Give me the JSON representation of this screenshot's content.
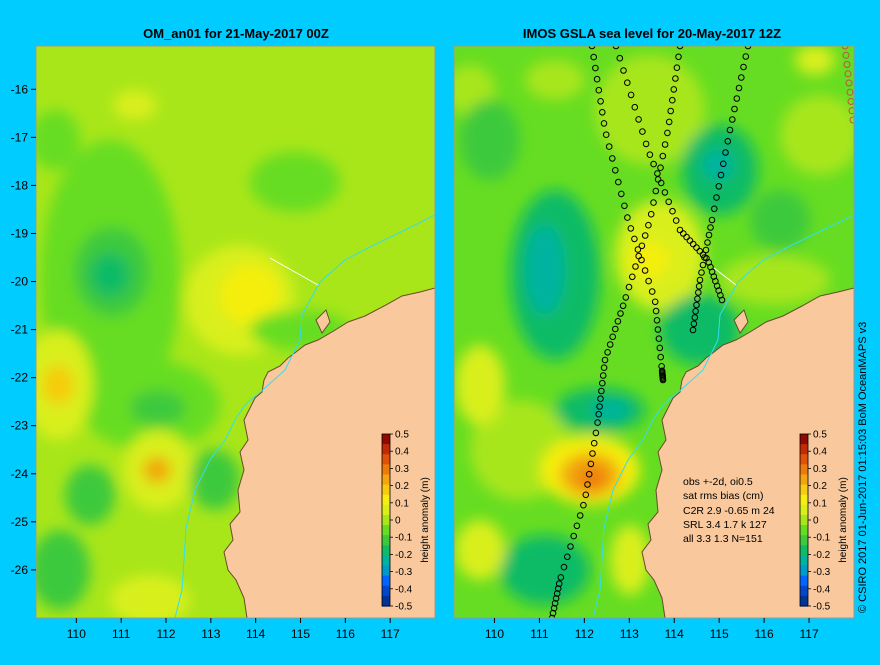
{
  "credit": "© CSIRO 2017   01-Jun-2017 01:15:03 BoM OceanMAPS v3",
  "colorbar_colors": [
    "#003399",
    "#0047cc",
    "#0066ff",
    "#0099cc",
    "#00b3a0",
    "#11bb66",
    "#3cc93c",
    "#66dd22",
    "#a8e61a",
    "#d9ef1a",
    "#f5ee10",
    "#f5cc10",
    "#f2a50f",
    "#ee7a0c",
    "#e05207",
    "#c02a04",
    "#8e0a02"
  ],
  "land_color": "#f9c99d",
  "chart_data": [
    {
      "type": "heatmap",
      "title": "OM_an01 for 21-May-2017 00Z",
      "x_ticks": [
        110,
        111,
        112,
        113,
        114,
        115,
        116,
        117
      ],
      "y_ticks": [
        -16,
        -17,
        -18,
        -19,
        -20,
        -21,
        -22,
        -23,
        -24,
        -25,
        -26
      ],
      "xlim": [
        109.1,
        118.0
      ],
      "ylim": [
        -27.0,
        -15.1
      ],
      "colorbar": {
        "label": "height anomaly (m)",
        "ticks": [
          0.5,
          0.4,
          0.3,
          0.2,
          0.1,
          0,
          -0.1,
          -0.2,
          -0.3,
          -0.4,
          -0.5
        ],
        "range": [
          -0.5,
          0.5
        ]
      }
    },
    {
      "type": "heatmap",
      "title": "IMOS GSLA sea level  for 20-May-2017 12Z",
      "x_ticks": [
        110,
        111,
        112,
        113,
        114,
        115,
        116,
        117
      ],
      "y_ticks": [],
      "xlim": [
        109.1,
        118.0
      ],
      "ylim": [
        -27.0,
        -15.1
      ],
      "colorbar": {
        "label": "height anomaly (m)",
        "ticks": [
          0.5,
          0.4,
          0.3,
          0.2,
          0.1,
          0,
          -0.1,
          -0.2,
          -0.3,
          -0.4,
          -0.5
        ],
        "range": [
          -0.5,
          0.5
        ]
      },
      "stats_box": {
        "header": "obs +-2d, oi0.5",
        "columns": "sat rms bias (cm)",
        "rows": [
          "C2R   2.9 -0.65 m 24",
          "SRL    3.4  1.7  k 127",
          "all    3.3  1.3  N=151"
        ]
      }
    }
  ]
}
